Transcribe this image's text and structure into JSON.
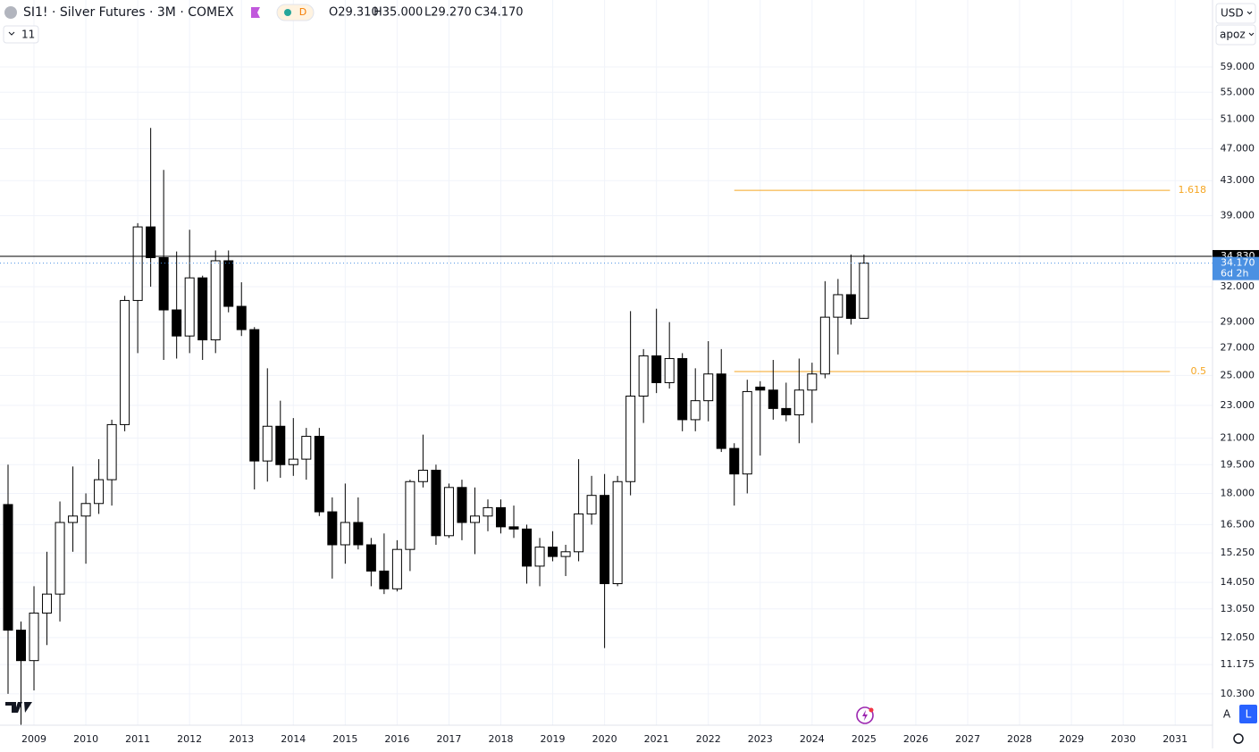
{
  "chart_data": {
    "type": "candlestick",
    "header": {
      "symbol": "SI1! · Silver Futures · 3M · COMEX",
      "badge": "D",
      "ohlc": [
        "O29.310",
        "H35.000",
        "L29.270",
        "C34.170"
      ],
      "indicators": "11"
    },
    "controls": {
      "currency": "USD",
      "scale_mode": "apoz",
      "auto": "A",
      "log": "L"
    },
    "log_scale": true,
    "grid": true,
    "up_color": "#ffffff",
    "down_color": "#000000",
    "x": [
      2008.5,
      2008.75,
      2009,
      2009.25,
      2009.5,
      2009.75,
      2010,
      2010.25,
      2010.5,
      2010.75,
      2011,
      2011.25,
      2011.5,
      2011.75,
      2012,
      2012.25,
      2012.5,
      2012.75,
      2013,
      2013.25,
      2013.5,
      2013.75,
      2014,
      2014.25,
      2014.5,
      2014.75,
      2015,
      2015.25,
      2015.5,
      2015.75,
      2016,
      2016.25,
      2016.5,
      2016.75,
      2017,
      2017.25,
      2017.5,
      2017.75,
      2018,
      2018.25,
      2018.5,
      2018.75,
      2019,
      2019.25,
      2019.5,
      2019.75,
      2020,
      2020.25,
      2020.5,
      2020.75,
      2021,
      2021.25,
      2021.5,
      2021.75,
      2022,
      2022.25,
      2022.5,
      2022.75,
      2023,
      2023.25,
      2023.5,
      2023.75,
      2024,
      2024.25,
      2024.5,
      2024.75,
      2025
    ],
    "open": [
      17.45,
      12.3,
      11.3,
      12.9,
      13.6,
      16.6,
      16.9,
      17.5,
      18.7,
      21.8,
      30.8,
      37.8,
      34.7,
      30.0,
      27.9,
      32.8,
      27.6,
      34.4,
      30.3,
      28.4,
      19.7,
      21.7,
      19.5,
      19.8,
      21.1,
      17.1,
      15.6,
      16.6,
      15.6,
      14.5,
      13.8,
      15.4,
      18.6,
      19.2,
      16.0,
      18.3,
      16.6,
      16.9,
      17.3,
      16.4,
      16.3,
      14.7,
      15.5,
      15.1,
      15.3,
      17.0,
      17.9,
      14.0,
      18.6,
      23.6,
      26.4,
      24.5,
      26.2,
      22.1,
      23.3,
      25.1,
      20.4,
      19.0,
      24.2,
      24.0,
      22.8,
      22.4,
      24.0,
      25.1,
      29.4,
      31.3,
      29.31
    ],
    "high": [
      19.5,
      12.6,
      13.9,
      15.3,
      17.6,
      19.4,
      18.0,
      19.8,
      22.1,
      31.2,
      38.2,
      49.8,
      44.3,
      35.3,
      37.5,
      33.0,
      35.4,
      35.4,
      32.4,
      28.6,
      25.5,
      23.3,
      22.2,
      21.6,
      21.6,
      17.8,
      18.5,
      17.8,
      15.9,
      16.1,
      15.8,
      18.7,
      21.2,
      19.5,
      18.5,
      18.7,
      18.3,
      17.7,
      17.7,
      17.4,
      16.5,
      15.9,
      16.2,
      15.6,
      19.8,
      18.9,
      19.0,
      18.9,
      29.9,
      26.9,
      30.1,
      29.0,
      26.6,
      25.5,
      27.5,
      26.9,
      20.7,
      24.7,
      24.6,
      26.1,
      24.5,
      26.2,
      25.9,
      32.5,
      32.7,
      35.0,
      35.0
    ],
    "low": [
      10.3,
      8.8,
      10.4,
      11.8,
      12.6,
      15.3,
      14.8,
      17.0,
      17.4,
      21.4,
      26.6,
      32.0,
      26.1,
      26.2,
      26.6,
      26.1,
      26.6,
      29.8,
      27.9,
      18.2,
      18.6,
      18.8,
      18.9,
      18.7,
      16.9,
      14.2,
      14.8,
      15.4,
      13.9,
      13.6,
      13.7,
      14.5,
      18.3,
      15.6,
      15.9,
      15.8,
      15.2,
      16.2,
      16.1,
      15.9,
      14.0,
      13.9,
      14.9,
      14.3,
      14.9,
      16.5,
      11.7,
      13.9,
      17.9,
      21.9,
      23.8,
      24.1,
      21.4,
      21.4,
      22.0,
      20.2,
      17.4,
      18.0,
      20.0,
      22.1,
      22.0,
      20.7,
      21.9,
      24.8,
      26.5,
      28.8,
      29.27
    ],
    "close": [
      12.3,
      11.3,
      12.9,
      13.6,
      16.6,
      16.9,
      17.5,
      18.7,
      21.8,
      30.8,
      37.8,
      34.7,
      30.0,
      27.9,
      32.8,
      27.6,
      34.4,
      30.3,
      28.4,
      19.7,
      21.7,
      19.5,
      19.8,
      21.1,
      17.1,
      15.6,
      16.6,
      15.6,
      14.5,
      13.8,
      15.4,
      18.6,
      19.2,
      16.0,
      18.3,
      16.6,
      16.9,
      17.3,
      16.4,
      16.3,
      14.7,
      15.5,
      15.1,
      15.3,
      17.0,
      17.9,
      14.0,
      18.6,
      23.6,
      26.4,
      24.5,
      26.2,
      22.1,
      23.3,
      25.1,
      20.4,
      19.0,
      23.9,
      24.0,
      22.8,
      22.4,
      24.0,
      25.1,
      29.4,
      31.3,
      29.3,
      34.17
    ],
    "xlim": [
      2008.345,
      2031.72
    ],
    "xticks": [
      2009,
      2010,
      2011,
      2012,
      2013,
      2014,
      2015,
      2016,
      2017,
      2018,
      2019,
      2020,
      2021,
      2022,
      2023,
      2024,
      2025,
      2026,
      2027,
      2028,
      2029,
      2030,
      2031
    ],
    "ylim": [
      9.44,
      71.1
    ],
    "yticks": [
      {
        "value": 59,
        "label": "59.000"
      },
      {
        "value": 55,
        "label": "55.000"
      },
      {
        "value": 51,
        "label": "51.000"
      },
      {
        "value": 47,
        "label": "47.000"
      },
      {
        "value": 43,
        "label": "43.000"
      },
      {
        "value": 39,
        "label": "39.000"
      },
      {
        "value": 32,
        "label": "32.000"
      },
      {
        "value": 29,
        "label": "29.000"
      },
      {
        "value": 27,
        "label": "27.000"
      },
      {
        "value": 25,
        "label": "25.000"
      },
      {
        "value": 23,
        "label": "23.000"
      },
      {
        "value": 21,
        "label": "21.000"
      },
      {
        "value": 19.5,
        "label": "19.500"
      },
      {
        "value": 18,
        "label": "18.000"
      },
      {
        "value": 16.5,
        "label": "16.500"
      },
      {
        "value": 15.25,
        "label": "15.250"
      },
      {
        "value": 14.05,
        "label": "14.050"
      },
      {
        "value": 13.05,
        "label": "13.050"
      },
      {
        "value": 12.05,
        "label": "12.050"
      },
      {
        "value": 11.175,
        "label": "11.175"
      },
      {
        "value": 10.3,
        "label": "10.300"
      }
    ],
    "price_lines": [
      {
        "value": 34.83,
        "label": "34.830",
        "color": "#000000"
      },
      {
        "value": 34.17,
        "label": "34.170",
        "countdown": "6d 2h",
        "color": "#4a90e2"
      }
    ],
    "fib_levels": [
      {
        "value": 41.85,
        "label": "1.618",
        "x_range": [
          2022.5,
          2030.9
        ],
        "color": "#f5a623"
      },
      {
        "value": 25.27,
        "label": "0.5",
        "x_range": [
          2022.5,
          2030.9
        ],
        "color": "#f5a623"
      }
    ]
  }
}
